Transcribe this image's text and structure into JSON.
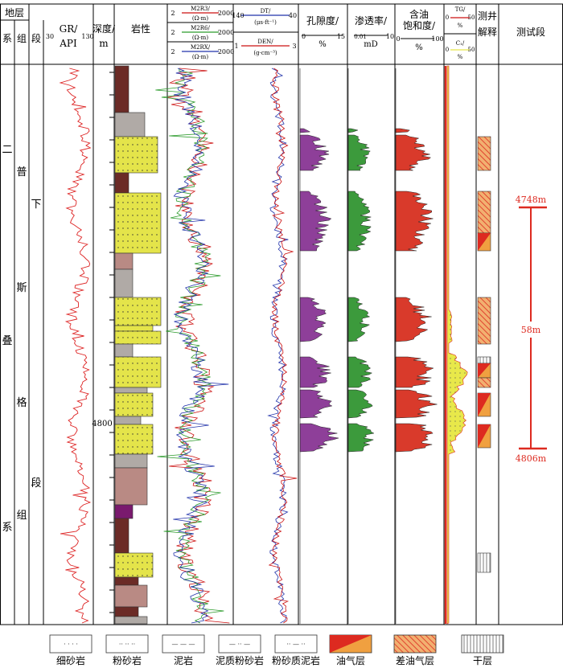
{
  "header": {
    "stratum": "地层",
    "system": "系",
    "group": "组",
    "segment": "段",
    "gr_label": "GR/",
    "gr_unit": "API",
    "gr_min": "30",
    "gr_max": "130",
    "depth_label": "深度/",
    "depth_unit": "m",
    "lithology": "岩性",
    "res_min": "2",
    "res_max": "2000",
    "res_curves": [
      {
        "name": "M2R3/",
        "unit": "(Ω·m)",
        "color": "#cc1111"
      },
      {
        "name": "M2R6/",
        "unit": "(Ω·m)",
        "color": "#2a9a2a"
      },
      {
        "name": "M2RX/",
        "unit": "(Ω·m)",
        "color": "#2233aa"
      }
    ],
    "dt_name": "DT/",
    "dt_unit": "(μs·ft⁻¹)",
    "dt_min": "140",
    "dt_max": "40",
    "den_name": "DEN/",
    "den_unit": "(g·cm⁻³)",
    "den_min": "1",
    "den_max": "3",
    "porosity_label": "孔隙度/",
    "porosity_unit": "%",
    "porosity_min": "0",
    "porosity_max": "15",
    "perm_label": "渗透率/",
    "perm_unit": "mD",
    "perm_min": "0.01",
    "perm_max": "10",
    "sat_label_1": "含油",
    "sat_label_2": "饱和度/",
    "sat_unit": "%",
    "sat_min": "0",
    "sat_max": "100",
    "tg_name": "TG/",
    "tg_unit": "%",
    "tg_min": "0",
    "tg_max": "50",
    "c1_name": "C₁/",
    "c1_unit": "%",
    "c1_min": "0",
    "c1_max": "50",
    "interp_1": "测井",
    "interp_2": "解释",
    "test_interval": "测试段"
  },
  "strata": {
    "system_chars": [
      "二",
      "叠",
      "系"
    ],
    "group_chars": [
      "普",
      "斯",
      "格",
      "组"
    ],
    "segment_chars": [
      "下",
      "段"
    ]
  },
  "depth_label_4800": "4800",
  "test_top": "4748m",
  "test_thickness": "58m",
  "test_bottom": "4806m",
  "legend": [
    {
      "key": "fine_sandstone",
      "label": "细砂岩"
    },
    {
      "key": "siltstone",
      "label": "粉砂岩"
    },
    {
      "key": "mudstone",
      "label": "泥岩"
    },
    {
      "key": "argillaceous_siltstone",
      "label": "泥质粉砂岩"
    },
    {
      "key": "silty_mudstone",
      "label": "粉砂质泥岩"
    },
    {
      "key": "oil_gas_layer",
      "label": "油气层"
    },
    {
      "key": "poor_oil_gas_layer",
      "label": "差油气层"
    },
    {
      "key": "dry_layer",
      "label": "干层"
    }
  ],
  "colors": {
    "sandstone": "#e4e44a",
    "mudstone_dark": "#6b2b26",
    "mudstone_pink": "#b98a84",
    "grey_silt": "#b0aaa6",
    "purple": "#7a1a6e",
    "porosity_fill": "#8e3f99",
    "perm_fill": "#3c9a3c",
    "sat_fill": "#d93a2b",
    "oil_gas_orange": "#f0a040",
    "oil_gas_red": "#dd2a20",
    "test_red": "#dd2a20"
  },
  "chart_data": {
    "type": "well-log",
    "depth_marker": 4800,
    "test_interval": {
      "top": 4748,
      "bottom": 4806,
      "thickness": 58
    },
    "tracks": [
      "GR",
      "lithology",
      "M2R3",
      "M2R6",
      "M2RX",
      "DT",
      "DEN",
      "porosity",
      "permeability",
      "oil_saturation",
      "TG",
      "C1",
      "interpretation"
    ]
  }
}
